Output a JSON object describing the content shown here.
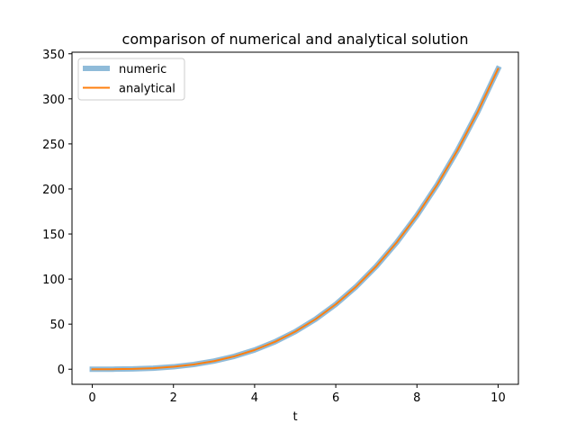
{
  "chart_data": {
    "type": "line",
    "title": "comparison of numerical and analytical solution",
    "xlabel": "t",
    "ylabel": "",
    "xlim": [
      -0.5,
      10.5
    ],
    "ylim": [
      -16.75,
      351.75
    ],
    "xticks": [
      0,
      2,
      4,
      6,
      8,
      10
    ],
    "yticks": [
      0,
      50,
      100,
      150,
      200,
      250,
      300,
      350
    ],
    "grid": false,
    "legend": "top-left",
    "series": [
      {
        "name": "numeric",
        "color": "#1f77b4",
        "opacity": 0.5,
        "x": [
          0,
          0.5,
          1,
          1.5,
          2,
          2.5,
          3,
          3.5,
          4,
          4.5,
          5,
          5.5,
          6,
          6.5,
          7,
          7.5,
          8,
          8.5,
          9,
          9.5,
          10
        ],
        "y": [
          0,
          0.04,
          0.33,
          1.13,
          2.67,
          5.21,
          9.0,
          14.29,
          21.33,
          30.38,
          41.67,
          55.46,
          72.0,
          91.54,
          114.33,
          140.63,
          170.67,
          204.71,
          243.0,
          285.79,
          333.33
        ]
      },
      {
        "name": "analytical",
        "color": "#ff7f0e",
        "opacity": 1,
        "x": [
          0,
          0.5,
          1,
          1.5,
          2,
          2.5,
          3,
          3.5,
          4,
          4.5,
          5,
          5.5,
          6,
          6.5,
          7,
          7.5,
          8,
          8.5,
          9,
          9.5,
          10
        ],
        "y": [
          0,
          0.04,
          0.33,
          1.13,
          2.67,
          5.21,
          9.0,
          14.29,
          21.33,
          30.38,
          41.67,
          55.46,
          72.0,
          91.54,
          114.33,
          140.63,
          170.67,
          204.71,
          243.0,
          285.79,
          333.33
        ]
      }
    ]
  }
}
